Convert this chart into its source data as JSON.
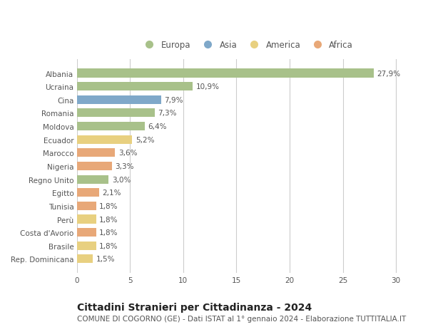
{
  "countries": [
    "Albania",
    "Ucraina",
    "Cina",
    "Romania",
    "Moldova",
    "Ecuador",
    "Marocco",
    "Nigeria",
    "Regno Unito",
    "Egitto",
    "Tunisia",
    "Perù",
    "Costa d'Avorio",
    "Brasile",
    "Rep. Dominicana"
  ],
  "values": [
    27.9,
    10.9,
    7.9,
    7.3,
    6.4,
    5.2,
    3.6,
    3.3,
    3.0,
    2.1,
    1.8,
    1.8,
    1.8,
    1.8,
    1.5
  ],
  "labels": [
    "27,9%",
    "10,9%",
    "7,9%",
    "7,3%",
    "6,4%",
    "5,2%",
    "3,6%",
    "3,3%",
    "3,0%",
    "2,1%",
    "1,8%",
    "1,8%",
    "1,8%",
    "1,8%",
    "1,5%"
  ],
  "continents": [
    "Europa",
    "Europa",
    "Asia",
    "Europa",
    "Europa",
    "America",
    "Africa",
    "Africa",
    "Europa",
    "Africa",
    "Africa",
    "America",
    "Africa",
    "America",
    "America"
  ],
  "continent_colors": {
    "Europa": "#a8c18a",
    "Asia": "#7fa8c9",
    "America": "#e8d080",
    "Africa": "#e8a878"
  },
  "legend_order": [
    "Europa",
    "Asia",
    "America",
    "Africa"
  ],
  "title": "Cittadini Stranieri per Cittadinanza - 2024",
  "subtitle": "COMUNE DI COGORNO (GE) - Dati ISTAT al 1° gennaio 2024 - Elaborazione TUTTITALIA.IT",
  "xlim": [
    0,
    32
  ],
  "xticks": [
    0,
    5,
    10,
    15,
    20,
    25,
    30
  ],
  "background_color": "#ffffff",
  "grid_color": "#cccccc",
  "bar_height": 0.65,
  "label_fontsize": 7.5,
  "tick_fontsize": 7.5,
  "title_fontsize": 10,
  "subtitle_fontsize": 7.5
}
